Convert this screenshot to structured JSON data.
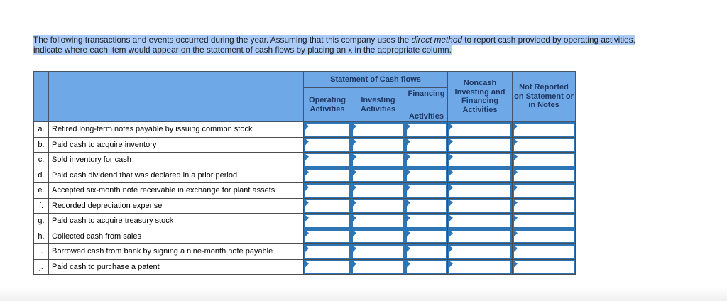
{
  "instructions": {
    "seg1": "The following transactions and events occurred during the year. Assuming that this company uses the ",
    "seg2_italic": "direct method",
    "seg3": " to report cash provided by operating activities,",
    "seg4": "indicate where each item would appear on the statement of cash flows by placing an x in the appropriate column."
  },
  "table": {
    "header": {
      "statement_group": "Statement of Cash flows",
      "operating": "Operating Activities",
      "investing": "Investing Activities",
      "financing_line1": "Financing",
      "financing_line2": "Activities",
      "noncash": "Noncash Investing and Financing Activities",
      "not_reported": "Not Reported on Statement or in Notes"
    },
    "answer_columns": [
      "operating",
      "investing",
      "financing",
      "noncash",
      "not_reported"
    ],
    "rows": [
      {
        "letter": "a.",
        "description": "Retired long-term notes payable by issuing common stock"
      },
      {
        "letter": "b.",
        "description": "Paid cash to acquire inventory"
      },
      {
        "letter": "c.",
        "description": "Sold inventory for cash"
      },
      {
        "letter": "d.",
        "description": "Paid cash dividend that was declared in a prior period"
      },
      {
        "letter": "e.",
        "description": "Accepted six-month note receivable in exchange for plant assets"
      },
      {
        "letter": "f.",
        "description": "Recorded depreciation expense"
      },
      {
        "letter": "g.",
        "description": "Paid cash to acquire treasury stock"
      },
      {
        "letter": "h.",
        "description": "Collected cash from sales"
      },
      {
        "letter": "i.",
        "description": "Borrowed cash from bank by signing a nine-month note payable"
      },
      {
        "letter": "j.",
        "description": "Paid cash to purchase a patent"
      }
    ]
  },
  "icons": {
    "dropdown_marker": "triangle-right-icon"
  },
  "colors": {
    "header_bg": "#6FA8E6",
    "header_text": "#1F3864",
    "header_border": "#44546A",
    "grid_border": "#4D4D4D",
    "answer_cell_border": "#2E75B6",
    "selection_highlight": "#ABCBF8"
  }
}
